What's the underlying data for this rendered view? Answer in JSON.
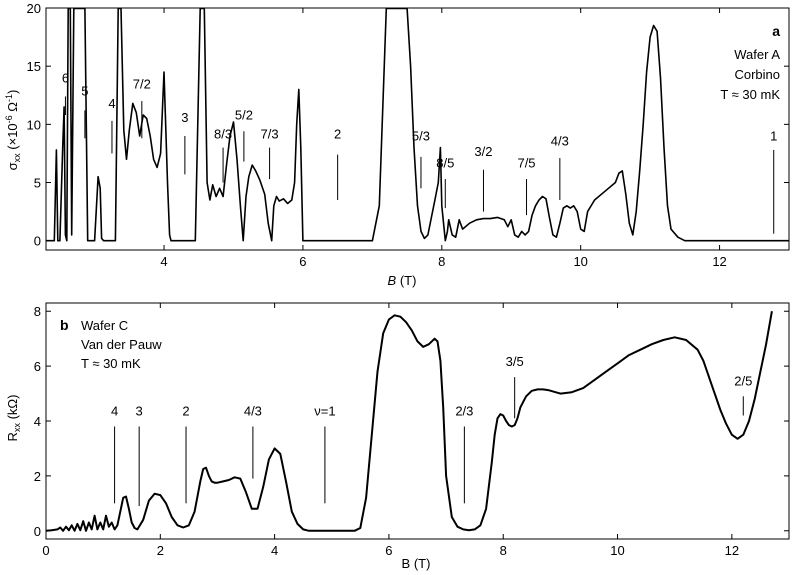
{
  "chart_data": [
    {
      "type": "line",
      "panel_label": "a",
      "notes": [
        "Wafer A",
        "Corbino",
        "T ≈ 30 mK"
      ],
      "xlabel": {
        "italic": "B",
        "rest": " (T)"
      },
      "ylabel": {
        "sym": "σ",
        "sub": "xx",
        "rest": " (×10",
        "sup": "-6",
        "unit": " Ω",
        "sup2": "-1",
        "close": ")"
      },
      "xlim": [
        2.3,
        13.0
      ],
      "ylim": [
        -0.8,
        20
      ],
      "xticks": [
        4,
        6,
        8,
        10,
        12
      ],
      "yticks": [
        0,
        5,
        10,
        15,
        20
      ],
      "color": "#000000",
      "series": [
        {
          "x": [
            2.3,
            2.38,
            2.42,
            2.45,
            2.47,
            2.5,
            2.54,
            2.56,
            2.58,
            2.6,
            2.62,
            2.63,
            2.65,
            2.67,
            2.7,
            2.72,
            2.74,
            2.78,
            2.82,
            2.86,
            2.9,
            2.94,
            3.0,
            3.05,
            3.08,
            3.1,
            3.13,
            3.18,
            3.25,
            3.3,
            3.34,
            3.36,
            3.38,
            3.42,
            3.46,
            3.5,
            3.55,
            3.6,
            3.65,
            3.7,
            3.75,
            3.8,
            3.85,
            3.9,
            3.95,
            4.0,
            4.05,
            4.08,
            4.1,
            4.15,
            4.3,
            4.45,
            4.52,
            4.55,
            4.58,
            4.62,
            4.66,
            4.7,
            4.75,
            4.8,
            4.85,
            4.9,
            4.95,
            5.0,
            5.05,
            5.1,
            5.14,
            5.18,
            5.22,
            5.27,
            5.32,
            5.38,
            5.45,
            5.5,
            5.55,
            5.58,
            5.62,
            5.66,
            5.72,
            5.78,
            5.84,
            5.88,
            5.91,
            5.94,
            5.97,
            6.0,
            6.2,
            6.6,
            7.0,
            7.1,
            7.2,
            7.25,
            7.3,
            7.4,
            7.45,
            7.5,
            7.55,
            7.6,
            7.65,
            7.7,
            7.75,
            7.8,
            7.85,
            7.9,
            7.95,
            7.98,
            8.0,
            8.05,
            8.08,
            8.1,
            8.15,
            8.2,
            8.25,
            8.3,
            8.4,
            8.5,
            8.6,
            8.7,
            8.8,
            8.9,
            8.95,
            9.0,
            9.05,
            9.1,
            9.15,
            9.2,
            9.25,
            9.3,
            9.35,
            9.4,
            9.45,
            9.5,
            9.55,
            9.6,
            9.65,
            9.7,
            9.75,
            9.8,
            9.85,
            9.9,
            9.95,
            10.0,
            10.05,
            10.1,
            10.2,
            10.3,
            10.4,
            10.5,
            10.55,
            10.6,
            10.65,
            10.7,
            10.75,
            10.8,
            10.85,
            10.9,
            10.95,
            11.0,
            11.05,
            11.1,
            11.15,
            11.2,
            11.25,
            11.3,
            11.4,
            11.5,
            11.6,
            11.8,
            12.0,
            12.5,
            13.0
          ],
          "y": [
            0,
            0,
            0,
            7.8,
            0,
            0,
            8.0,
            11.5,
            0.5,
            0,
            20,
            20,
            20,
            0.5,
            20,
            20,
            20,
            20,
            20,
            20,
            0,
            0,
            0,
            5.5,
            4.5,
            0.2,
            0,
            0,
            0,
            0,
            20,
            20,
            20,
            9.5,
            7.0,
            9.5,
            11.8,
            11.0,
            9.0,
            10.8,
            10.5,
            9.0,
            7.0,
            6.3,
            7.5,
            14.5,
            5.0,
            0.5,
            0,
            0,
            0,
            0,
            20,
            20,
            20,
            5.0,
            3.5,
            4.8,
            3.8,
            4.5,
            3.8,
            6.5,
            9.0,
            10.2,
            7.0,
            3.0,
            0,
            3.8,
            5.5,
            6.5,
            6.0,
            5.2,
            4.0,
            1.5,
            0,
            3.0,
            3.8,
            3.4,
            3.6,
            3.2,
            3.5,
            5.0,
            10.0,
            13.0,
            8.0,
            0,
            0,
            0,
            0,
            3.0,
            20,
            20,
            20,
            20,
            20,
            20,
            15.0,
            8.0,
            3.0,
            0.8,
            0.2,
            0.5,
            2.0,
            3.5,
            5.0,
            8.0,
            3.0,
            0,
            0.8,
            1.8,
            0.5,
            0.3,
            1.8,
            1.0,
            1.5,
            1.8,
            1.9,
            1.9,
            2.0,
            1.8,
            1.2,
            1.8,
            0.5,
            0.3,
            0.8,
            0.5,
            0.8,
            2.2,
            3.0,
            3.5,
            3.8,
            3.6,
            2.0,
            0.5,
            0.3,
            1.5,
            2.8,
            3.0,
            2.8,
            3.0,
            2.5,
            1.0,
            0.8,
            2.5,
            3.5,
            4.0,
            4.5,
            5.0,
            5.8,
            6.0,
            4.0,
            1.5,
            0.5,
            2.5,
            6.0,
            10.0,
            14.5,
            17.5,
            18.5,
            18.0,
            14.0,
            8.0,
            3.0,
            1.0,
            0.3,
            0,
            0,
            0,
            0,
            0,
            0
          ]
        }
      ],
      "annotations": [
        {
          "text": "6",
          "x": 2.58,
          "y_text": 13.6,
          "line": [
            2.58,
            10.8,
            12.4
          ]
        },
        {
          "text": "5",
          "x": 2.86,
          "y_text": 12.5,
          "line": [
            2.86,
            8.8,
            11.2
          ]
        },
        {
          "text": "4",
          "x": 3.25,
          "y_text": 11.4,
          "line": [
            3.25,
            7.5,
            10.3
          ]
        },
        {
          "text": "7/2",
          "x": 3.68,
          "y_text": 13.1,
          "line": [
            3.68,
            8.8,
            12.0
          ]
        },
        {
          "text": "3",
          "x": 4.3,
          "y_text": 10.2,
          "line": [
            4.3,
            5.7,
            9.0
          ]
        },
        {
          "text": "8/3",
          "x": 4.85,
          "y_text": 8.8,
          "line": [
            4.85,
            5.0,
            8.0
          ]
        },
        {
          "text": "5/2",
          "x": 5.15,
          "y_text": 10.4,
          "line": [
            5.15,
            6.8,
            9.4
          ]
        },
        {
          "text": "7/3",
          "x": 5.52,
          "y_text": 8.8,
          "line": [
            5.52,
            5.3,
            8.0
          ]
        },
        {
          "text": "2",
          "x": 6.5,
          "y_text": 8.8,
          "line": [
            6.5,
            3.5,
            7.4
          ]
        },
        {
          "text": "5/3",
          "x": 7.7,
          "y_text": 8.6,
          "line": [
            7.7,
            4.5,
            7.2
          ]
        },
        {
          "text": "8/5",
          "x": 8.05,
          "y_text": 6.3,
          "line": [
            8.05,
            2.8,
            5.3
          ]
        },
        {
          "text": "3/2",
          "x": 8.6,
          "y_text": 7.3,
          "line": [
            8.6,
            2.5,
            6.1
          ]
        },
        {
          "text": "7/5",
          "x": 9.22,
          "y_text": 6.3,
          "line": [
            9.22,
            2.2,
            5.3
          ]
        },
        {
          "text": "4/3",
          "x": 9.7,
          "y_text": 8.2,
          "line": [
            9.7,
            3.5,
            7.1
          ]
        },
        {
          "text": "1",
          "x": 12.78,
          "y_text": 8.6,
          "line": [
            12.78,
            0.6,
            7.8
          ]
        }
      ]
    },
    {
      "type": "line",
      "panel_label": "b",
      "notes": [
        "Wafer C",
        "Van der Pauw",
        "T ≈ 30 mK"
      ],
      "xlabel": {
        "italic": "",
        "rest": "B (T)"
      },
      "ylabel": {
        "sym": "R",
        "sub": "xx",
        "rest": " (kΩ)"
      },
      "xlim": [
        0,
        13.0
      ],
      "ylim": [
        -0.3,
        8.3
      ],
      "xticks": [
        0,
        2,
        4,
        6,
        8,
        10,
        12
      ],
      "yticks": [
        0,
        2,
        4,
        6,
        8
      ],
      "color": "#000000",
      "series": [
        {
          "x": [
            0,
            0.1,
            0.2,
            0.25,
            0.3,
            0.35,
            0.4,
            0.45,
            0.5,
            0.55,
            0.6,
            0.65,
            0.7,
            0.75,
            0.8,
            0.85,
            0.9,
            0.95,
            1.0,
            1.05,
            1.1,
            1.15,
            1.2,
            1.25,
            1.3,
            1.35,
            1.4,
            1.45,
            1.5,
            1.55,
            1.6,
            1.7,
            1.8,
            1.9,
            2.0,
            2.1,
            2.2,
            2.3,
            2.4,
            2.5,
            2.6,
            2.7,
            2.75,
            2.8,
            2.85,
            2.9,
            2.95,
            3.0,
            3.1,
            3.2,
            3.3,
            3.4,
            3.5,
            3.6,
            3.7,
            3.8,
            3.9,
            4.0,
            4.1,
            4.2,
            4.3,
            4.4,
            4.5,
            4.6,
            4.8,
            5.0,
            5.2,
            5.4,
            5.5,
            5.6,
            5.7,
            5.8,
            5.9,
            6.0,
            6.1,
            6.2,
            6.3,
            6.4,
            6.5,
            6.6,
            6.7,
            6.8,
            6.85,
            6.9,
            6.95,
            7.0,
            7.1,
            7.2,
            7.3,
            7.4,
            7.5,
            7.6,
            7.7,
            7.8,
            7.85,
            7.9,
            7.95,
            8.0,
            8.05,
            8.1,
            8.15,
            8.2,
            8.25,
            8.3,
            8.4,
            8.5,
            8.6,
            8.7,
            8.8,
            9.0,
            9.2,
            9.4,
            9.6,
            9.8,
            10.0,
            10.2,
            10.4,
            10.6,
            10.8,
            11.0,
            11.2,
            11.4,
            11.5,
            11.6,
            11.7,
            11.8,
            11.9,
            12.0,
            12.1,
            12.2,
            12.3,
            12.4,
            12.5,
            12.6,
            12.7
          ],
          "y": [
            0,
            0.02,
            0.05,
            0.12,
            0.0,
            0.15,
            0.02,
            0.2,
            0.0,
            0.25,
            0.02,
            0.35,
            0.0,
            0.3,
            0.05,
            0.55,
            0.05,
            0.3,
            0.05,
            0.55,
            0.15,
            0.3,
            0.05,
            0.2,
            0.7,
            1.2,
            1.25,
            0.8,
            0.3,
            0.1,
            0.05,
            0.4,
            1.1,
            1.35,
            1.3,
            1.0,
            0.5,
            0.2,
            0.12,
            0.2,
            0.7,
            1.8,
            2.25,
            2.3,
            2.0,
            1.8,
            1.75,
            1.75,
            1.8,
            1.85,
            1.95,
            1.9,
            1.4,
            0.8,
            0.8,
            1.6,
            2.6,
            3.0,
            2.8,
            1.8,
            0.7,
            0.25,
            0.05,
            0,
            0,
            0,
            0,
            0,
            0.1,
            1.2,
            3.5,
            5.8,
            7.2,
            7.7,
            7.85,
            7.8,
            7.6,
            7.3,
            6.9,
            6.7,
            6.8,
            7.0,
            6.9,
            6.2,
            4.5,
            2.0,
            0.5,
            0.15,
            0.05,
            0.02,
            0.05,
            0.2,
            0.8,
            2.5,
            3.5,
            4.1,
            4.25,
            4.2,
            4.0,
            3.85,
            3.8,
            3.85,
            4.1,
            4.5,
            4.9,
            5.1,
            5.15,
            5.15,
            5.12,
            5.0,
            5.05,
            5.2,
            5.5,
            5.8,
            6.1,
            6.4,
            6.6,
            6.8,
            6.95,
            7.05,
            6.95,
            6.6,
            6.2,
            5.6,
            5.0,
            4.4,
            3.9,
            3.5,
            3.35,
            3.5,
            4.0,
            4.8,
            5.8,
            6.8,
            8.0
          ]
        }
      ],
      "annotations": [
        {
          "text": "4",
          "x": 1.2,
          "y_text": 4.2,
          "line": [
            1.2,
            1.0,
            3.8
          ]
        },
        {
          "text": "3",
          "x": 1.63,
          "y_text": 4.2,
          "line": [
            1.63,
            0.9,
            3.8
          ]
        },
        {
          "text": "2",
          "x": 2.45,
          "y_text": 4.2,
          "line": [
            2.45,
            1.0,
            3.8
          ]
        },
        {
          "text": "4/3",
          "x": 3.62,
          "y_text": 4.2,
          "line": [
            3.62,
            1.9,
            3.8
          ]
        },
        {
          "text": "ν=1",
          "x": 4.88,
          "y_text": 4.2,
          "line": [
            4.88,
            1.0,
            3.8
          ]
        },
        {
          "text": "2/3",
          "x": 7.32,
          "y_text": 4.2,
          "line": [
            7.32,
            1.0,
            3.8
          ]
        },
        {
          "text": "3/5",
          "x": 8.2,
          "y_text": 6.0,
          "line": [
            8.2,
            4.1,
            5.6
          ]
        },
        {
          "text": "2/5",
          "x": 12.2,
          "y_text": 5.3,
          "line": [
            12.2,
            4.2,
            4.9
          ]
        }
      ]
    }
  ]
}
